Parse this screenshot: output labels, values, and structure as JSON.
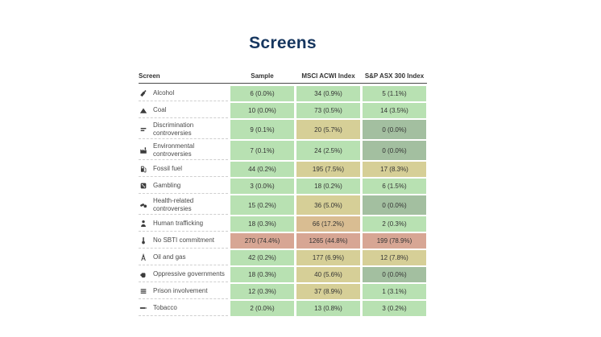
{
  "page": {
    "title": "Screens"
  },
  "colors": {
    "title": "#16365f",
    "green": "#b8e1b2",
    "tan": "#d6cf97",
    "tan_dark": "#d9bd92",
    "sage": "#a3bfa0",
    "salmon": "#d7a694"
  },
  "table": {
    "columns": [
      "Screen",
      "Sample",
      "MSCI ACWI Index",
      "S&P ASX 300 Index"
    ],
    "rows": [
      {
        "icon": "wine-bottle",
        "label": "Alcohol",
        "cells": [
          {
            "value": "6 (0.0%)",
            "color": "green"
          },
          {
            "value": "34 (0.9%)",
            "color": "green"
          },
          {
            "value": "5 (1.1%)",
            "color": "green"
          }
        ]
      },
      {
        "icon": "coal-mound",
        "label": "Coal",
        "cells": [
          {
            "value": "10 (0.0%)",
            "color": "green"
          },
          {
            "value": "73 (0.5%)",
            "color": "green"
          },
          {
            "value": "14 (3.5%)",
            "color": "green"
          }
        ]
      },
      {
        "icon": "unequal-bars",
        "label": "Discrimination controversies",
        "cells": [
          {
            "value": "9 (0.1%)",
            "color": "green"
          },
          {
            "value": "20 (5.7%)",
            "color": "tan"
          },
          {
            "value": "0 (0.0%)",
            "color": "sage"
          }
        ]
      },
      {
        "icon": "factory",
        "label": "Environmental controversies",
        "cells": [
          {
            "value": "7 (0.1%)",
            "color": "green"
          },
          {
            "value": "24 (2.5%)",
            "color": "green"
          },
          {
            "value": "0 (0.0%)",
            "color": "sage"
          }
        ]
      },
      {
        "icon": "fuel-pump",
        "label": "Fossil fuel",
        "cells": [
          {
            "value": "44 (0.2%)",
            "color": "green"
          },
          {
            "value": "195 (7.5%)",
            "color": "tan"
          },
          {
            "value": "17 (8.3%)",
            "color": "tan"
          }
        ]
      },
      {
        "icon": "dice",
        "label": "Gambling",
        "cells": [
          {
            "value": "3 (0.0%)",
            "color": "green"
          },
          {
            "value": "18 (0.2%)",
            "color": "green"
          },
          {
            "value": "6 (1.5%)",
            "color": "green"
          }
        ]
      },
      {
        "icon": "pills",
        "label": "Health-related controversies",
        "cells": [
          {
            "value": "15 (0.2%)",
            "color": "green"
          },
          {
            "value": "36 (5.0%)",
            "color": "tan"
          },
          {
            "value": "0 (0.0%)",
            "color": "sage"
          }
        ]
      },
      {
        "icon": "person",
        "label": "Human trafficking",
        "cells": [
          {
            "value": "18 (0.3%)",
            "color": "green"
          },
          {
            "value": "66 (17.2%)",
            "color": "tan_dark"
          },
          {
            "value": "2 (0.3%)",
            "color": "green"
          }
        ]
      },
      {
        "icon": "thermometer",
        "label": "No SBTI commitment",
        "cells": [
          {
            "value": "270 (74.4%)",
            "color": "salmon"
          },
          {
            "value": "1265 (44.8%)",
            "color": "salmon"
          },
          {
            "value": "199 (78.9%)",
            "color": "salmon"
          }
        ]
      },
      {
        "icon": "oil-derrick",
        "label": "Oil and gas",
        "cells": [
          {
            "value": "42 (0.2%)",
            "color": "green"
          },
          {
            "value": "177 (6.9%)",
            "color": "tan"
          },
          {
            "value": "12 (7.8%)",
            "color": "tan"
          }
        ]
      },
      {
        "icon": "fist",
        "label": "Oppressive governments",
        "cells": [
          {
            "value": "18 (0.3%)",
            "color": "green"
          },
          {
            "value": "40 (5.6%)",
            "color": "tan"
          },
          {
            "value": "0 (0.0%)",
            "color": "sage"
          }
        ]
      },
      {
        "icon": "prison-bars",
        "label": "Prison involvement",
        "cells": [
          {
            "value": "12 (0.3%)",
            "color": "green"
          },
          {
            "value": "37 (8.9%)",
            "color": "tan"
          },
          {
            "value": "1 (3.1%)",
            "color": "green"
          }
        ]
      },
      {
        "icon": "cigarette",
        "label": "Tobacco",
        "cells": [
          {
            "value": "2 (0.0%)",
            "color": "green"
          },
          {
            "value": "13 (0.8%)",
            "color": "green"
          },
          {
            "value": "3 (0.2%)",
            "color": "green"
          }
        ]
      }
    ]
  },
  "chart_data": {
    "type": "table",
    "title": "Screens",
    "columns": [
      "Screen",
      "Sample",
      "MSCI ACWI Index",
      "S&P ASX 300 Index"
    ],
    "rows": [
      [
        "Alcohol",
        "6 (0.0%)",
        "34 (0.9%)",
        "5 (1.1%)"
      ],
      [
        "Coal",
        "10 (0.0%)",
        "73 (0.5%)",
        "14 (3.5%)"
      ],
      [
        "Discrimination controversies",
        "9 (0.1%)",
        "20 (5.7%)",
        "0 (0.0%)"
      ],
      [
        "Environmental controversies",
        "7 (0.1%)",
        "24 (2.5%)",
        "0 (0.0%)"
      ],
      [
        "Fossil fuel",
        "44 (0.2%)",
        "195 (7.5%)",
        "17 (8.3%)"
      ],
      [
        "Gambling",
        "3 (0.0%)",
        "18 (0.2%)",
        "6 (1.5%)"
      ],
      [
        "Health-related controversies",
        "15 (0.2%)",
        "36 (5.0%)",
        "0 (0.0%)"
      ],
      [
        "Human trafficking",
        "18 (0.3%)",
        "66 (17.2%)",
        "2 (0.3%)"
      ],
      [
        "No SBTI commitment",
        "270 (74.4%)",
        "1265 (44.8%)",
        "199 (78.9%)"
      ],
      [
        "Oil and gas",
        "42 (0.2%)",
        "177 (6.9%)",
        "12 (7.8%)"
      ],
      [
        "Oppressive governments",
        "18 (0.3%)",
        "40 (5.6%)",
        "0 (0.0%)"
      ],
      [
        "Prison involvement",
        "12 (0.3%)",
        "37 (8.9%)",
        "1 (3.1%)"
      ],
      [
        "Tobacco",
        "2 (0.0%)",
        "13 (0.8%)",
        "3 (0.2%)"
      ]
    ]
  }
}
